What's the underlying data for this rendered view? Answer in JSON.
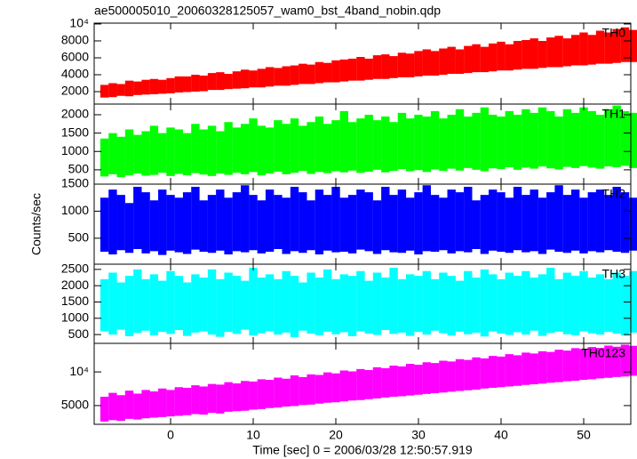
{
  "figure": {
    "title": "ae500005010_20060328125057_wam0_bst_4band_nobin.qdp",
    "ylabel": "Counts/sec",
    "xlabel": "Time [sec] 0 = 2006/03/28 12:50:57.919",
    "xlim": [
      -9.25,
      55.7
    ],
    "xticks": [
      0,
      10,
      20,
      30,
      40,
      50
    ],
    "x": [
      -8,
      -7,
      -6,
      -5,
      -4,
      -3,
      -2,
      -1,
      0,
      1,
      2,
      3,
      4,
      5,
      6,
      7,
      8,
      9,
      10,
      11,
      12,
      13,
      14,
      15,
      16,
      17,
      18,
      19,
      20,
      21,
      22,
      23,
      24,
      25,
      26,
      27,
      28,
      29,
      30,
      31,
      32,
      33,
      34,
      35,
      36,
      37,
      38,
      39,
      40,
      41,
      42,
      43,
      44,
      45,
      46,
      47,
      48,
      49,
      50,
      51,
      52,
      53,
      54,
      55,
      56
    ]
  },
  "chart_data": [
    {
      "type": "band",
      "ylim": [
        530,
        10100
      ],
      "yticks": [
        2000,
        4000,
        6000,
        8000,
        {
          "value": 10000,
          "label": "10⁴"
        }
      ],
      "series": [
        {
          "name": "TH0",
          "color": "#ff0000",
          "low": [
            1300,
            1350,
            1500,
            1450,
            1600,
            1650,
            1700,
            1750,
            1800,
            1900,
            1950,
            2000,
            2050,
            2200,
            2200,
            2300,
            2350,
            2400,
            2500,
            2500,
            2600,
            2700,
            2700,
            2800,
            2900,
            2900,
            3000,
            3100,
            3100,
            3200,
            3300,
            3300,
            3400,
            3500,
            3500,
            3600,
            3700,
            3700,
            3800,
            3900,
            3900,
            4000,
            4100,
            4100,
            4200,
            4300,
            4300,
            4400,
            4500,
            4500,
            4600,
            4700,
            4700,
            4800,
            4900,
            4900,
            5000,
            5100,
            5100,
            5200,
            5300,
            5300,
            5400,
            5500,
            5500
          ],
          "high": [
            2800,
            3000,
            2900,
            3300,
            3200,
            3400,
            3500,
            3400,
            3600,
            3800,
            3800,
            4000,
            3900,
            4200,
            4300,
            4100,
            4400,
            4600,
            4500,
            4700,
            4900,
            4800,
            5000,
            5100,
            5300,
            5200,
            5500,
            5400,
            5700,
            5800,
            5900,
            6100,
            5900,
            6300,
            6400,
            6200,
            6600,
            6500,
            6800,
            7000,
            6800,
            7100,
            7300,
            7000,
            7400,
            7600,
            7300,
            7700,
            7900,
            7600,
            8000,
            8100,
            8300,
            8000,
            8400,
            8600,
            8300,
            8700,
            9000,
            8700,
            9200,
            9000,
            9400,
            9600,
            9300
          ]
        }
      ]
    },
    {
      "type": "band",
      "ylim": [
        110,
        2290
      ],
      "yticks": [
        500,
        1000,
        1500,
        2000
      ],
      "series": [
        {
          "name": "TH1",
          "color": "#00ff00",
          "low": [
            320,
            380,
            300,
            350,
            400,
            340,
            360,
            420,
            330,
            390,
            350,
            410,
            370,
            330,
            400,
            360,
            420,
            380,
            440,
            350,
            400,
            450,
            380,
            420,
            470,
            390,
            440,
            410,
            460,
            430,
            480,
            420,
            450,
            500,
            430,
            470,
            520,
            460,
            490,
            440,
            510,
            470,
            530,
            480,
            550,
            500,
            460,
            540,
            520,
            570,
            500,
            560,
            530,
            590,
            540,
            510,
            580,
            550,
            600,
            560,
            530,
            590,
            570,
            610,
            550
          ],
          "high": [
            1350,
            1500,
            1400,
            1600,
            1450,
            1550,
            1700,
            1500,
            1650,
            1600,
            1500,
            1750,
            1600,
            1700,
            1550,
            1800,
            1650,
            1750,
            1900,
            1700,
            1650,
            1850,
            1750,
            1900,
            1700,
            1800,
            1950,
            1750,
            1850,
            2100,
            1800,
            1900,
            2000,
            1850,
            1950,
            1800,
            2050,
            1900,
            2000,
            1950,
            2100,
            1900,
            2000,
            2150,
            1950,
            2050,
            2200,
            2000,
            1950,
            2100,
            2000,
            2150,
            2050,
            2200,
            2100,
            1950,
            2150,
            2050,
            2200,
            2100,
            2000,
            2150,
            2250,
            2100,
            2050
          ]
        }
      ]
    },
    {
      "type": "band",
      "ylim": [
        20,
        1500
      ],
      "yticks": [
        500,
        1000,
        1500
      ],
      "series": [
        {
          "name": "TH2",
          "color": "#0000ff",
          "low": [
            250,
            200,
            280,
            230,
            300,
            220,
            260,
            190,
            270,
            240,
            210,
            290,
            250,
            230,
            270,
            200,
            260,
            240,
            280,
            220,
            250,
            300,
            210,
            260,
            230,
            280,
            200,
            270,
            240,
            250,
            220,
            290,
            260,
            210,
            280,
            240,
            230,
            270,
            200,
            260,
            250,
            280,
            220,
            260,
            240,
            300,
            210,
            270,
            250,
            230,
            280,
            240,
            260,
            210,
            290,
            250,
            230,
            270,
            220,
            260,
            240,
            280,
            250,
            230,
            270
          ],
          "high": [
            1250,
            1400,
            1300,
            1150,
            1450,
            1350,
            1200,
            1400,
            1300,
            1250,
            1350,
            1450,
            1200,
            1300,
            1400,
            1250,
            1350,
            1480,
            1300,
            1200,
            1400,
            1300,
            1250,
            1450,
            1350,
            1200,
            1400,
            1300,
            1450,
            1250,
            1300,
            1400,
            1350,
            1200,
            1450,
            1300,
            1400,
            1250,
            1350,
            1480,
            1300,
            1250,
            1400,
            1350,
            1450,
            1200,
            1300,
            1400,
            1350,
            1250,
            1450,
            1300,
            1400,
            1250,
            1350,
            1480,
            1300,
            1400,
            1250,
            1350,
            1400,
            1300,
            1450,
            1350,
            1250
          ]
        }
      ]
    },
    {
      "type": "band",
      "ylim": [
        230,
        2660
      ],
      "yticks": [
        500,
        1000,
        1500,
        2000,
        2500
      ],
      "series": [
        {
          "name": "TH3",
          "color": "#00ffff",
          "low": [
            600,
            500,
            650,
            450,
            550,
            620,
            480,
            580,
            520,
            640,
            460,
            560,
            600,
            500,
            430,
            580,
            520,
            650,
            470,
            540,
            600,
            500,
            560,
            420,
            620,
            530,
            480,
            590,
            510,
            570,
            450,
            600,
            530,
            490,
            640,
            520,
            560,
            460,
            580,
            500,
            620,
            540,
            470,
            590,
            510,
            560,
            440,
            600,
            530,
            490,
            570,
            500,
            620,
            460,
            550,
            590,
            510,
            480,
            600,
            540,
            500,
            580,
            530,
            470,
            560
          ],
          "high": [
            2200,
            2400,
            2100,
            2300,
            2500,
            2200,
            2350,
            2150,
            2450,
            2300,
            2100,
            2350,
            2250,
            2500,
            2200,
            2400,
            2300,
            2150,
            2550,
            2250,
            2350,
            2200,
            2450,
            2300,
            2100,
            2400,
            2250,
            2500,
            2200,
            2350,
            2300,
            2450,
            2150,
            2400,
            2250,
            2550,
            2200,
            2350,
            2300,
            2450,
            2200,
            2400,
            2300,
            2150,
            2450,
            2250,
            2500,
            2350,
            2200,
            2400,
            2300,
            2450,
            2250,
            2350,
            2550,
            2200,
            2400,
            2300,
            2450,
            2250,
            2350,
            2200,
            2400,
            2300,
            2450
          ]
        }
      ]
    },
    {
      "type": "band",
      "log": true,
      "ylim": [
        3400,
        18000
      ],
      "yticks": [
        5000,
        {
          "value": 10000,
          "label": "10⁴"
        }
      ],
      "series": [
        {
          "name": "TH0123",
          "color": "#ff00ff",
          "low": [
            3600,
            3700,
            3650,
            3800,
            3750,
            3850,
            3900,
            3950,
            4000,
            4050,
            4100,
            4200,
            4150,
            4300,
            4250,
            4400,
            4450,
            4500,
            4600,
            4650,
            4750,
            4800,
            4900,
            4950,
            5050,
            5100,
            5200,
            5300,
            5350,
            5450,
            5550,
            5600,
            5700,
            5800,
            5900,
            6000,
            6050,
            6150,
            6250,
            6350,
            6450,
            6550,
            6650,
            6750,
            6850,
            6950,
            7100,
            7200,
            7300,
            7400,
            7500,
            7650,
            7750,
            7850,
            8000,
            8100,
            8250,
            8350,
            8500,
            8600,
            8750,
            8850,
            9000,
            9100,
            9250
          ],
          "high": [
            6000,
            6500,
            6200,
            6800,
            6400,
            6900,
            6700,
            7100,
            6900,
            7300,
            7200,
            7600,
            7400,
            7800,
            7700,
            8100,
            7900,
            8300,
            8200,
            8600,
            8500,
            8900,
            8700,
            9300,
            9000,
            9500,
            9400,
            9900,
            9700,
            10300,
            10100,
            10600,
            10400,
            11000,
            10800,
            11400,
            11200,
            11800,
            11600,
            12200,
            12000,
            12600,
            12400,
            13000,
            12800,
            13500,
            13200,
            13900,
            13700,
            14400,
            14100,
            14900,
            14600,
            15300,
            15100,
            15800,
            15500,
            16300,
            16000,
            16700,
            16400,
            17200,
            16800,
            17500,
            17100
          ]
        }
      ]
    }
  ]
}
